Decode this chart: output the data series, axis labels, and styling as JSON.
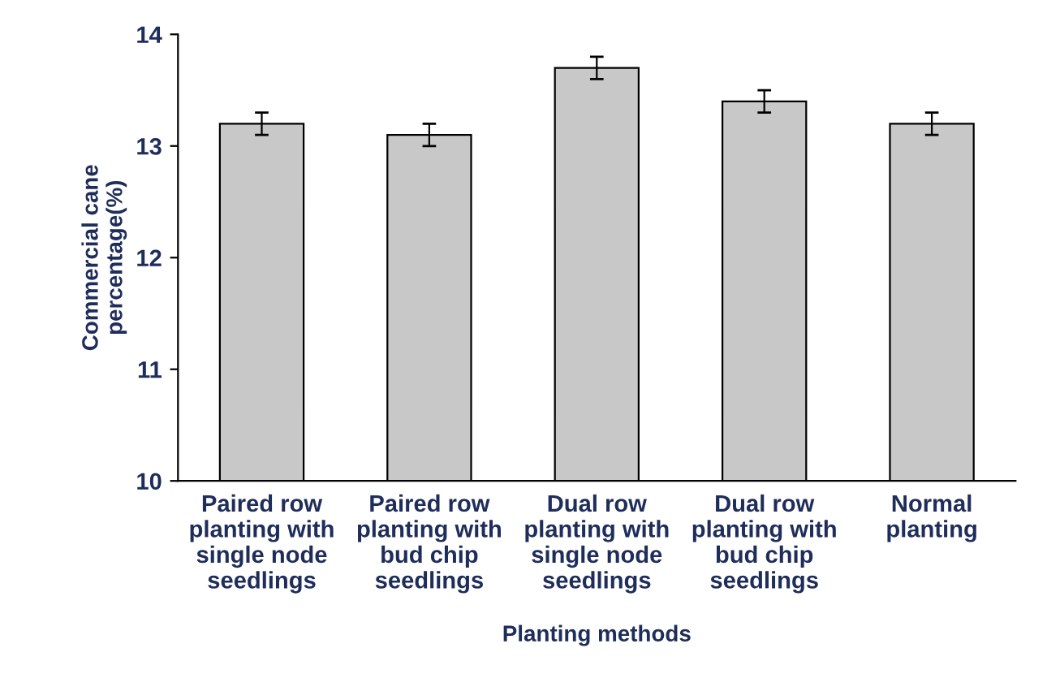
{
  "chart_data": {
    "type": "bar",
    "xlabel": "Planting methods",
    "ylabel": "Commercial cane\npercentage(%)",
    "categories": [
      "Paired row\nplanting with\nsingle node\nseedlings",
      "Paired row\nplanting with\nbud chip\nseedlings",
      "Dual row\nplanting with\nsingle node\nseedlings",
      "Dual row\nplanting with\nbud chip\nseedlings",
      "Normal\nplanting"
    ],
    "values": [
      13.2,
      13.1,
      13.7,
      13.4,
      13.2
    ],
    "errors": [
      0.1,
      0.1,
      0.1,
      0.1,
      0.1
    ],
    "color": "#c8c8c8",
    "ylim": [
      10,
      14
    ],
    "yticks": [
      10,
      11,
      12,
      13,
      14
    ],
    "grid": false,
    "legend": false
  }
}
